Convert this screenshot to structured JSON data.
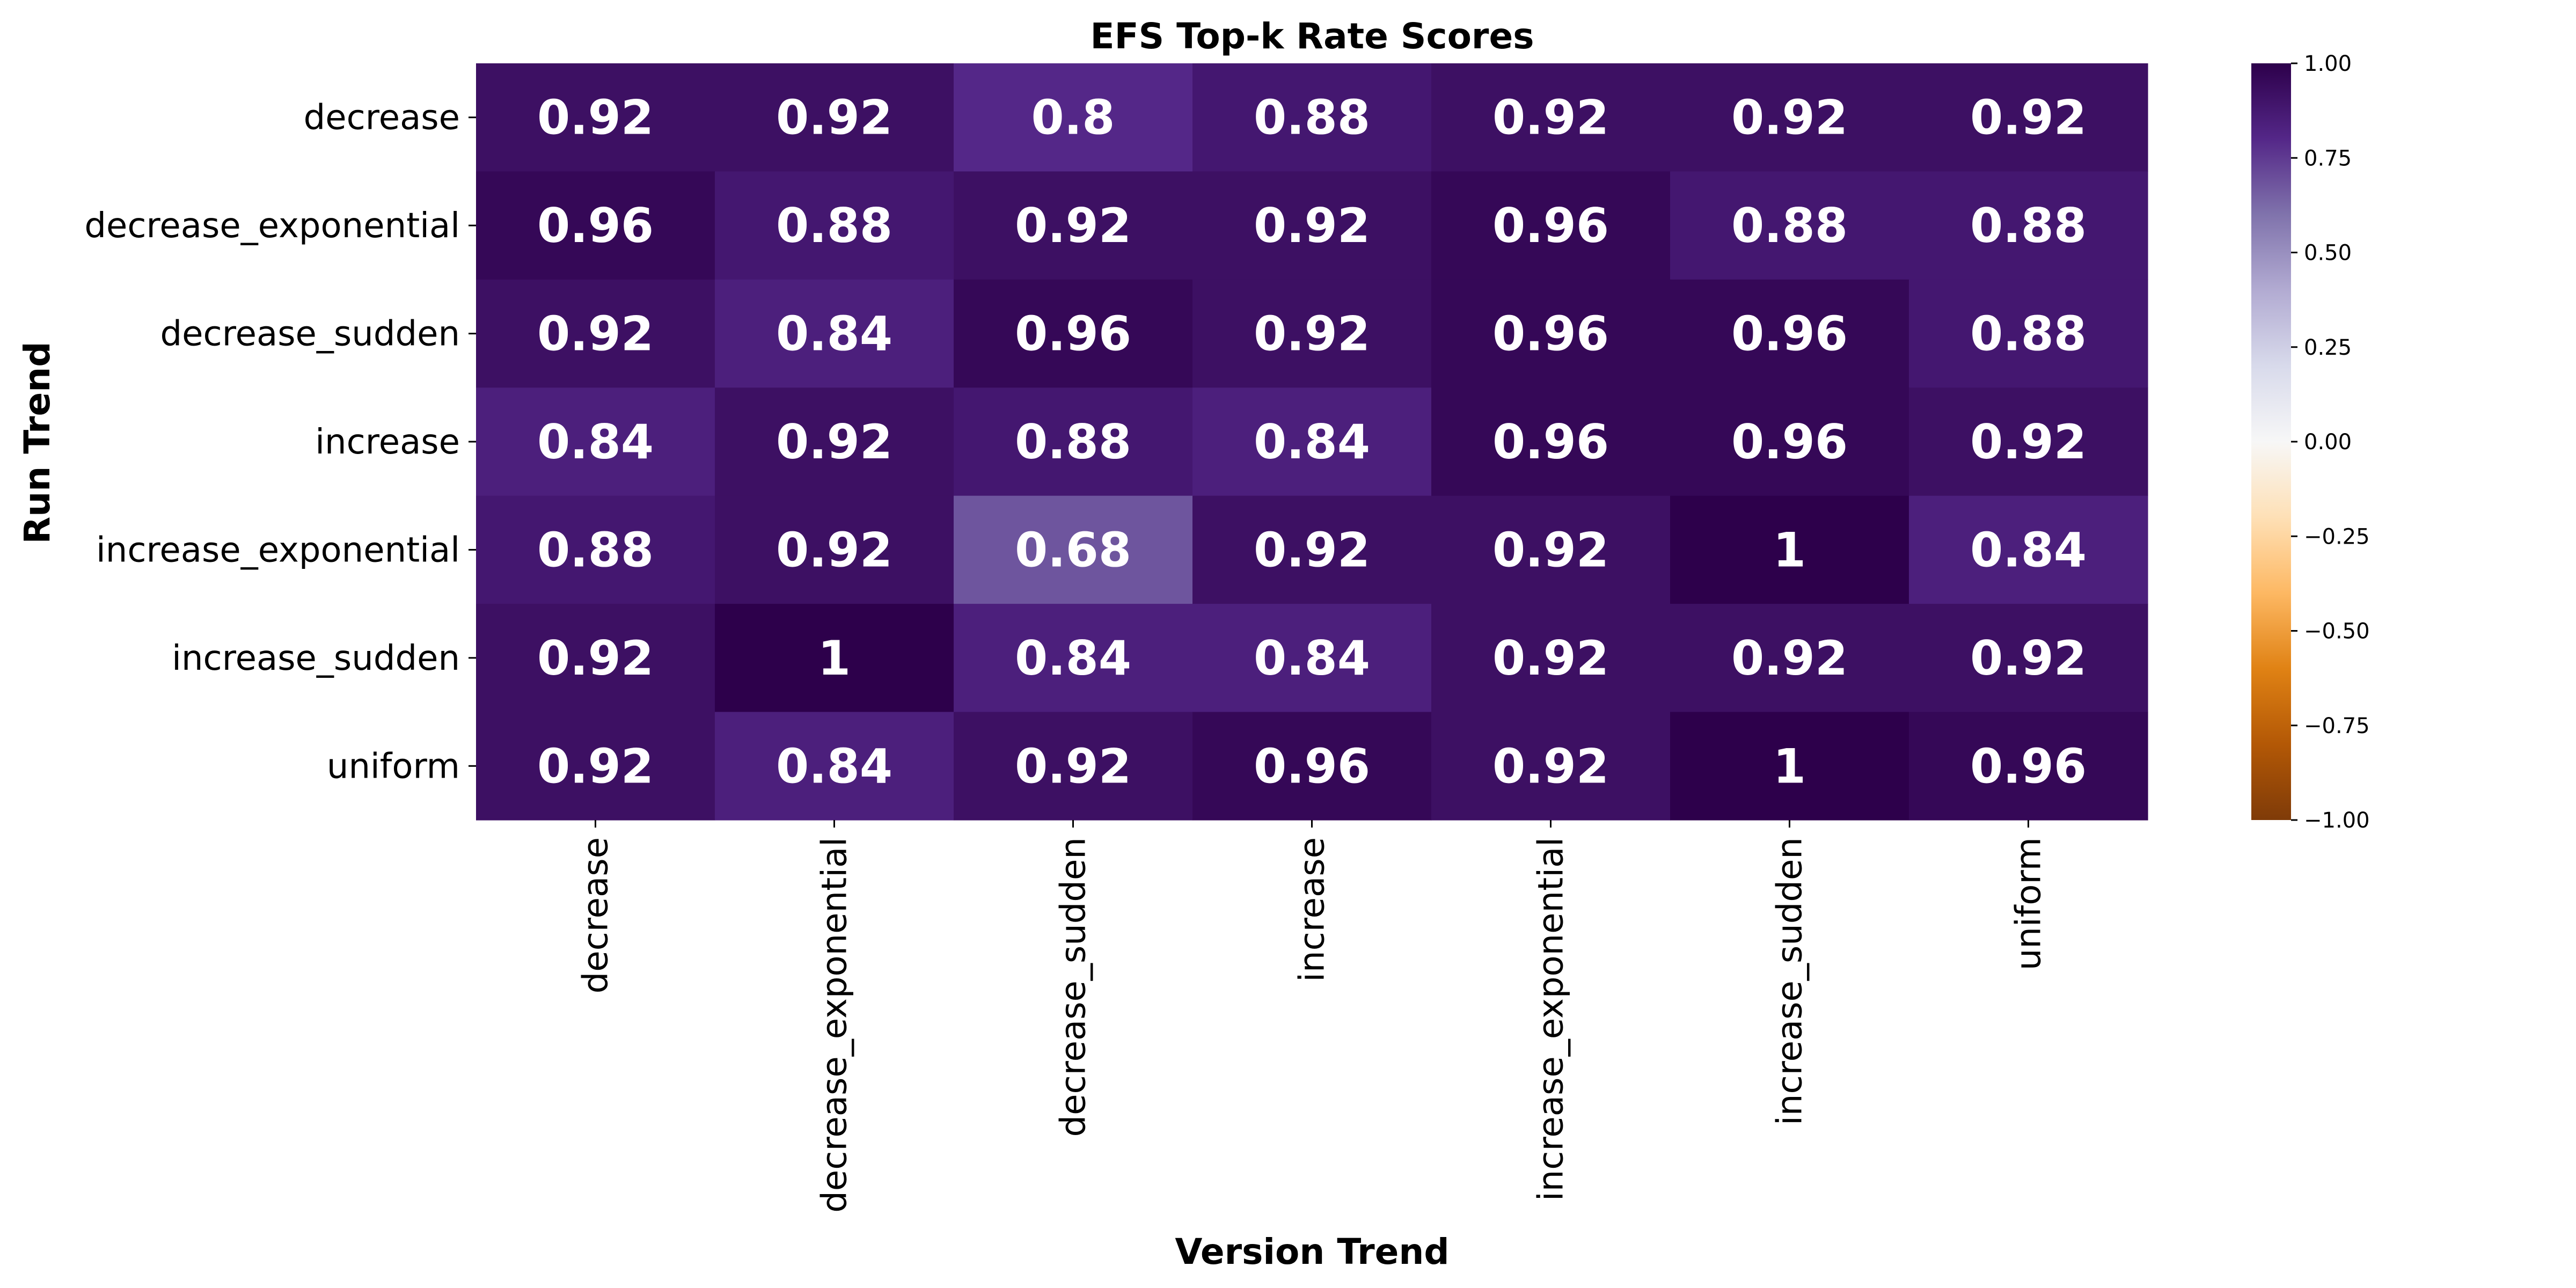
{
  "chart_data": {
    "type": "heatmap",
    "title": "EFS Top-k Rate Scores",
    "xlabel": "Version Trend",
    "ylabel": "Run Trend",
    "x_categories": [
      "decrease",
      "decrease_exponential",
      "decrease_sudden",
      "increase",
      "increase_exponential",
      "increase_sudden",
      "uniform"
    ],
    "y_categories": [
      "decrease",
      "decrease_exponential",
      "decrease_sudden",
      "increase",
      "increase_exponential",
      "increase_sudden",
      "uniform"
    ],
    "values": [
      [
        0.92,
        0.92,
        0.8,
        0.88,
        0.92,
        0.92,
        0.92
      ],
      [
        0.96,
        0.88,
        0.92,
        0.92,
        0.96,
        0.88,
        0.88
      ],
      [
        0.92,
        0.84,
        0.96,
        0.92,
        0.96,
        0.96,
        0.88
      ],
      [
        0.84,
        0.92,
        0.88,
        0.84,
        0.96,
        0.96,
        0.92
      ],
      [
        0.88,
        0.92,
        0.68,
        0.92,
        0.92,
        1,
        0.84
      ],
      [
        0.92,
        1,
        0.84,
        0.84,
        0.92,
        0.92,
        0.92
      ],
      [
        0.92,
        0.84,
        0.92,
        0.96,
        0.92,
        1,
        0.96
      ]
    ],
    "value_labels": [
      [
        "0.92",
        "0.92",
        "0.8",
        "0.88",
        "0.92",
        "0.92",
        "0.92"
      ],
      [
        "0.96",
        "0.88",
        "0.92",
        "0.92",
        "0.96",
        "0.88",
        "0.88"
      ],
      [
        "0.92",
        "0.84",
        "0.96",
        "0.92",
        "0.96",
        "0.96",
        "0.88"
      ],
      [
        "0.84",
        "0.92",
        "0.88",
        "0.84",
        "0.96",
        "0.96",
        "0.92"
      ],
      [
        "0.88",
        "0.92",
        "0.68",
        "0.92",
        "0.92",
        "1",
        "0.84"
      ],
      [
        "0.92",
        "1",
        "0.84",
        "0.84",
        "0.92",
        "0.92",
        "0.92"
      ],
      [
        "0.92",
        "0.84",
        "0.92",
        "0.96",
        "0.92",
        "1",
        "0.96"
      ]
    ],
    "colorbar": {
      "range": [
        -1,
        1
      ],
      "ticks": [
        1,
        0.75,
        0.5,
        0.25,
        0,
        -0.25,
        -0.5,
        -0.75,
        -1
      ],
      "tick_labels": [
        "1.00",
        "0.75",
        "0.50",
        "0.25",
        "0.00",
        "−0.25",
        "−0.50",
        "−0.75",
        "−1.00"
      ],
      "colormap": [
        "#7f3b08",
        "#b35806",
        "#e08214",
        "#fdb863",
        "#fee0b6",
        "#f7f7f7",
        "#d8daeb",
        "#b2abd2",
        "#8073ac",
        "#542788",
        "#2d004b"
      ]
    },
    "legend": "colorbar-right",
    "grid": false
  }
}
